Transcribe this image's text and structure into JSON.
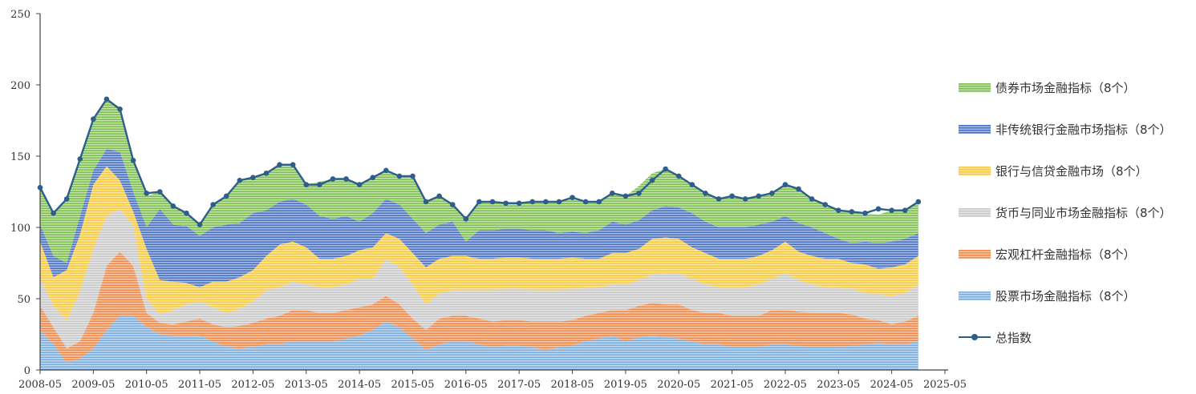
{
  "chart_data": {
    "type": "area",
    "stacked": true,
    "title": "",
    "xlabel": "",
    "ylabel": "",
    "ylim": [
      0,
      250
    ],
    "yticks": [
      "0",
      "50",
      "100",
      "150",
      "200",
      "250"
    ],
    "xticks": [
      "2008-05",
      "2009-05",
      "2010-05",
      "2011-05",
      "2012-05",
      "2013-05",
      "2014-05",
      "2015-05",
      "2016-05",
      "2017-05",
      "2018-05",
      "2019-05",
      "2020-05",
      "2021-05",
      "2022-05",
      "2023-05",
      "2024-05",
      "2025-05"
    ],
    "legend_position": "right",
    "grid": false,
    "x": [
      "2008-05",
      "2008-08",
      "2008-11",
      "2009-02",
      "2009-05",
      "2009-08",
      "2009-11",
      "2010-02",
      "2010-05",
      "2010-08",
      "2010-11",
      "2011-02",
      "2011-05",
      "2011-08",
      "2011-11",
      "2012-02",
      "2012-05",
      "2012-08",
      "2012-11",
      "2013-02",
      "2013-05",
      "2013-08",
      "2013-11",
      "2014-02",
      "2014-05",
      "2014-08",
      "2014-11",
      "2015-02",
      "2015-05",
      "2015-08",
      "2015-11",
      "2016-02",
      "2016-05",
      "2016-08",
      "2016-11",
      "2017-02",
      "2017-05",
      "2017-08",
      "2017-11",
      "2018-02",
      "2018-05",
      "2018-08",
      "2018-11",
      "2019-02",
      "2019-05",
      "2019-08",
      "2019-11",
      "2020-02",
      "2020-05",
      "2020-08",
      "2020-11",
      "2021-02",
      "2021-05",
      "2021-08",
      "2021-11",
      "2022-02",
      "2022-05",
      "2022-08",
      "2022-11",
      "2023-02",
      "2023-05",
      "2023-08",
      "2023-11",
      "2024-02",
      "2024-05",
      "2024-08",
      "2024-11"
    ],
    "series": [
      {
        "name": "股票市场金融指标（8个）",
        "color": "#7aaee0",
        "values": [
          28,
          18,
          5,
          8,
          15,
          28,
          38,
          38,
          30,
          25,
          24,
          24,
          24,
          20,
          16,
          15,
          16,
          18,
          18,
          20,
          20,
          20,
          20,
          22,
          24,
          28,
          34,
          30,
          22,
          14,
          18,
          20,
          20,
          18,
          16,
          17,
          17,
          16,
          14,
          16,
          17,
          20,
          22,
          24,
          20,
          23,
          24,
          23,
          22,
          20,
          18,
          18,
          16,
          16,
          16,
          18,
          18,
          17,
          16,
          16,
          16,
          17,
          18,
          19,
          18,
          18,
          20
        ]
      },
      {
        "name": "宏观杠杆金融指标（8个）",
        "color": "#f08a4b",
        "values": [
          17,
          12,
          10,
          12,
          25,
          45,
          45,
          35,
          10,
          8,
          8,
          10,
          12,
          12,
          14,
          16,
          17,
          18,
          20,
          22,
          22,
          20,
          20,
          20,
          20,
          18,
          18,
          16,
          14,
          14,
          18,
          18,
          18,
          18,
          18,
          18,
          18,
          18,
          20,
          18,
          18,
          18,
          18,
          18,
          22,
          22,
          23,
          23,
          24,
          22,
          22,
          22,
          22,
          22,
          22,
          24,
          24,
          24,
          24,
          24,
          24,
          22,
          18,
          16,
          14,
          16,
          18
        ]
      },
      {
        "name": "货币与同业市场金融指标（8个）",
        "color": "#c8c8c8",
        "values": [
          20,
          15,
          20,
          35,
          45,
          35,
          30,
          28,
          10,
          6,
          10,
          12,
          12,
          12,
          10,
          12,
          15,
          20,
          20,
          20,
          18,
          18,
          18,
          18,
          20,
          18,
          26,
          26,
          24,
          18,
          18,
          18,
          18,
          20,
          22,
          22,
          22,
          22,
          22,
          22,
          22,
          20,
          18,
          18,
          18,
          18,
          20,
          22,
          22,
          22,
          20,
          18,
          20,
          20,
          22,
          22,
          26,
          22,
          20,
          18,
          18,
          18,
          18,
          18,
          20,
          20,
          22
        ]
      },
      {
        "name": "银行与信贷金融市场（8个）",
        "color": "#f8c93c",
        "values": [
          25,
          20,
          35,
          40,
          45,
          35,
          20,
          10,
          35,
          24,
          20,
          15,
          10,
          18,
          22,
          22,
          22,
          24,
          30,
          28,
          26,
          20,
          20,
          20,
          20,
          22,
          18,
          20,
          22,
          26,
          24,
          24,
          24,
          22,
          22,
          22,
          22,
          22,
          22,
          22,
          22,
          20,
          20,
          22,
          22,
          22,
          25,
          25,
          24,
          22,
          22,
          20,
          20,
          20,
          20,
          20,
          22,
          20,
          20,
          20,
          20,
          18,
          20,
          18,
          20,
          20,
          20
        ]
      },
      {
        "name": "非传统银行金融市场指标（8个）",
        "color": "#4a72c4",
        "values": [
          12,
          15,
          5,
          13,
          10,
          12,
          20,
          14,
          15,
          50,
          40,
          40,
          36,
          38,
          40,
          38,
          40,
          32,
          30,
          30,
          30,
          30,
          28,
          28,
          20,
          24,
          24,
          24,
          24,
          24,
          24,
          24,
          10,
          20,
          20,
          20,
          20,
          20,
          20,
          18,
          18,
          18,
          20,
          22,
          20,
          20,
          20,
          22,
          22,
          24,
          22,
          22,
          22,
          22,
          22,
          20,
          18,
          20,
          20,
          18,
          14,
          14,
          16,
          18,
          18,
          18,
          16
        ]
      },
      {
        "name": "债券市场金融指标（8个）",
        "color": "#7fbf50",
        "values": [
          26,
          30,
          45,
          40,
          36,
          35,
          30,
          22,
          22,
          12,
          13,
          9,
          8,
          16,
          20,
          30,
          25,
          26,
          26,
          24,
          14,
          24,
          28,
          26,
          26,
          25,
          20,
          20,
          30,
          22,
          20,
          12,
          16,
          20,
          20,
          18,
          18,
          20,
          20,
          22,
          24,
          22,
          20,
          20,
          20,
          24,
          26,
          26,
          22,
          20,
          20,
          20,
          22,
          20,
          20,
          20,
          22,
          24,
          20,
          20,
          20,
          22,
          20,
          20,
          22,
          20,
          22
        ]
      }
    ],
    "total": {
      "name": "总指数",
      "color": "#2e5e8c",
      "values": [
        128,
        110,
        120,
        148,
        176,
        190,
        183,
        147,
        124,
        125,
        115,
        110,
        102,
        116,
        122,
        133,
        135,
        138,
        144,
        144,
        130,
        130,
        134,
        134,
        130,
        135,
        140,
        136,
        136,
        118,
        122,
        116,
        106,
        118,
        118,
        117,
        117,
        118,
        118,
        118,
        121,
        118,
        118,
        124,
        122,
        124,
        133,
        141,
        136,
        130,
        124,
        120,
        122,
        120,
        122,
        124,
        130,
        127,
        120,
        116,
        112,
        111,
        110,
        113,
        112,
        112,
        118
      ]
    }
  }
}
